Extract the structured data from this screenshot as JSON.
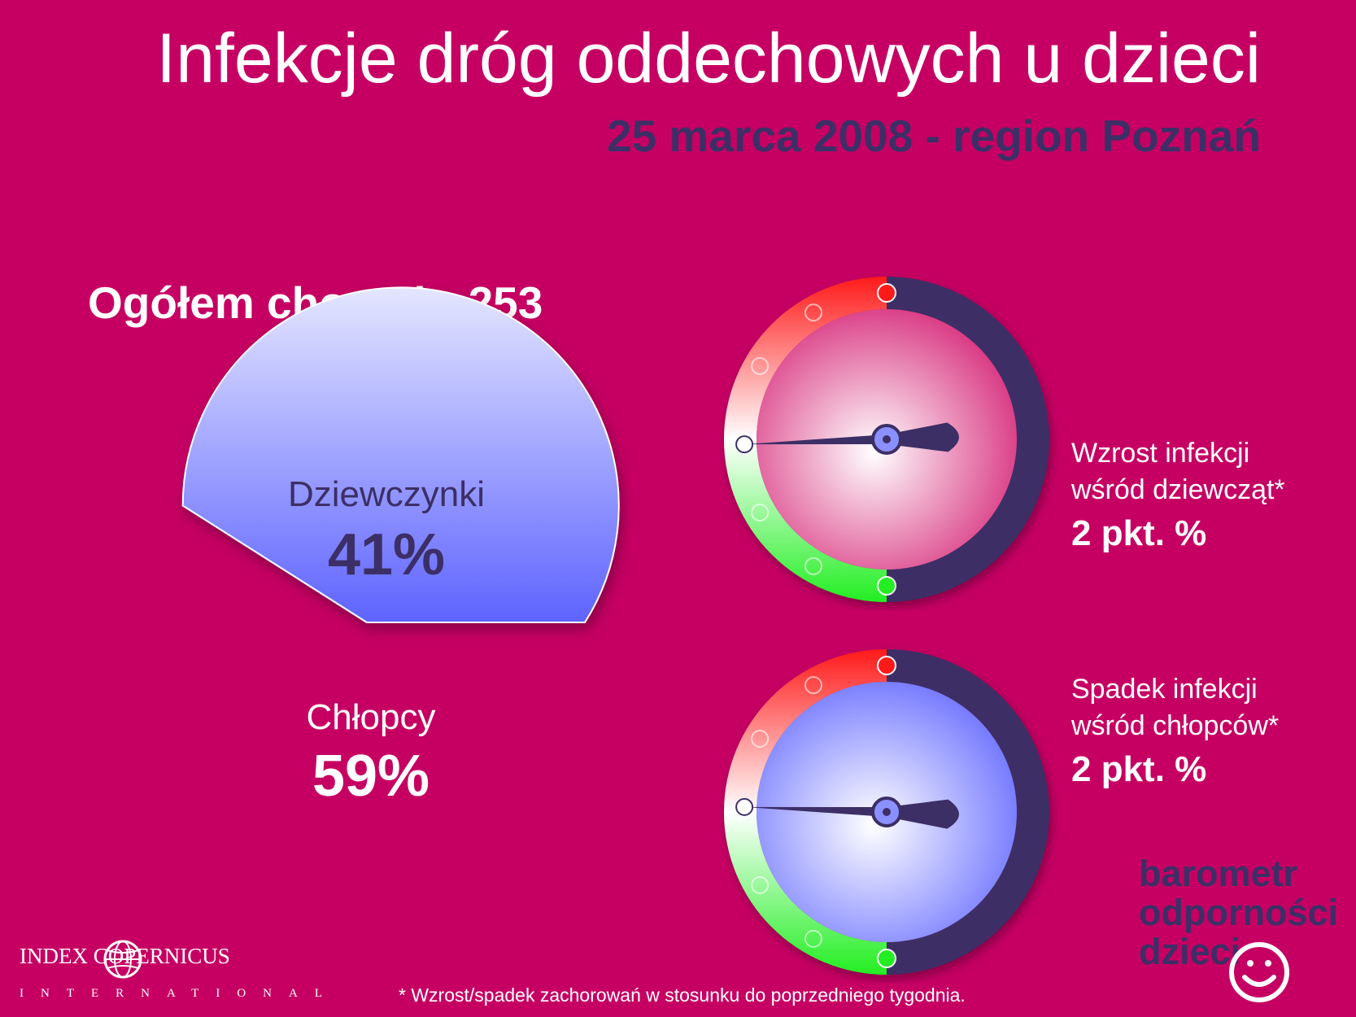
{
  "header": {
    "title": "Infekcje dróg oddechowych u dzieci",
    "subtitle": "25 marca 2008 - region Poznań"
  },
  "total_label": "Ogółem chorych: 253",
  "chart_data": [
    {
      "type": "pie",
      "slices": [
        {
          "label": "Dziewczynki",
          "value": 41,
          "value_text": "41%",
          "color": "#e06aa3"
        },
        {
          "label": "Chłopcy",
          "value": 59,
          "value_text": "59%",
          "color": "#8b90ff"
        }
      ]
    },
    {
      "type": "gauge",
      "caption": "Wzrost infekcji wśród dziewcząt*",
      "line1": "Wzrost infekcji",
      "line2": "wśród dziewcząt*",
      "value_text": "2 pkt. %",
      "value": 2,
      "face_color": "#d8327f"
    },
    {
      "type": "gauge",
      "caption": "Spadek infekcji wśród chłopców*",
      "line1": "Spadek infekcji",
      "line2": "wśród chłopców*",
      "value_text": "2 pkt. %",
      "value": -2,
      "face_color": "#6f74ff"
    }
  ],
  "footnote": "* Wzrost/spadek zachorowań w stosunku do poprzedniego tygodnia.",
  "brand": {
    "line1": "barometr",
    "line2": "odporności",
    "line3": "dzieci"
  },
  "publisher": {
    "name": "INDEX COPERNICUS",
    "sub": "INTERNATIONAL"
  },
  "colors": {
    "background": "#c60063",
    "dark": "#3c2f66",
    "red": "#ff1a1a",
    "green": "#22ee22"
  }
}
